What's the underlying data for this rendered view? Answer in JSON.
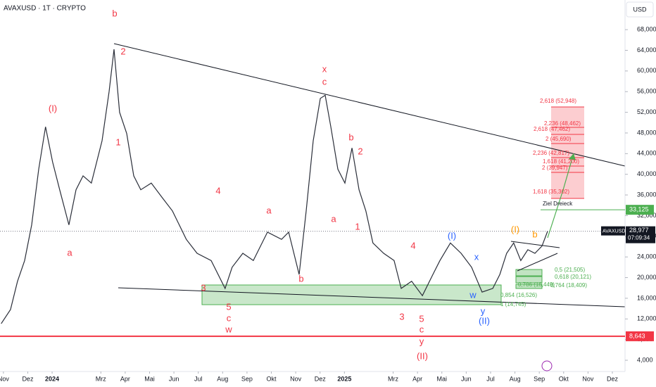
{
  "header": {
    "symbol": "AVAXUSD · 1T · CRYPTO",
    "currency": "USD"
  },
  "chart_data": {
    "type": "line",
    "color": "#2a2e39",
    "x": [
      -0.09,
      0.29,
      0.58,
      0.87,
      1.16,
      1.45,
      1.73,
      2.02,
      2.31,
      2.69,
      2.98,
      3.27,
      3.61,
      4.05,
      4.34,
      4.54,
      4.77,
      5.06,
      5.35,
      5.64,
      6.07,
      6.5,
      6.94,
      7.51,
      7.95,
      8.53,
      9.1,
      9.39,
      9.83,
      10.26,
      10.84,
      11.42,
      11.71,
      12.14,
      12.43,
      12.72,
      13.01,
      13.21,
      13.44,
      13.73,
      14.02,
      14.31,
      14.6,
      14.88,
      15.17,
      15.61,
      16.04,
      16.33,
      16.76,
      17.2,
      17.63,
      17.92,
      18.35,
      18.79,
      19.22,
      19.65,
      20.09,
      20.38,
      20.66,
      20.95,
      21.24,
      21.53,
      21.82,
      22.11,
      22.34
    ],
    "values": [
      11100,
      13800,
      19300,
      23300,
      30200,
      41000,
      49200,
      42400,
      37000,
      30200,
      37000,
      39700,
      38300,
      46500,
      56000,
      64200,
      52000,
      47900,
      39700,
      37000,
      38300,
      35600,
      32900,
      27400,
      24700,
      23300,
      17900,
      22000,
      24700,
      23300,
      28800,
      27400,
      28800,
      20600,
      32900,
      46500,
      54700,
      55300,
      49200,
      41000,
      38300,
      45100,
      37000,
      32900,
      26700,
      24700,
      23300,
      17900,
      19300,
      16500,
      20600,
      23300,
      26700,
      24700,
      22000,
      17200,
      17900,
      20600,
      24700,
      26700,
      23300,
      25400,
      24700,
      26100,
      28977
    ],
    "xlim": [
      -0.14,
      25.52
    ],
    "xticks": [
      {
        "value": 0,
        "label": "Nov"
      },
      {
        "value": 1,
        "label": "Dez"
      },
      {
        "value": 2,
        "label": "2024"
      },
      {
        "value": 4,
        "label": "Mrz"
      },
      {
        "value": 5,
        "label": "Apr"
      },
      {
        "value": 6,
        "label": "Mai"
      },
      {
        "value": 7,
        "label": "Jun"
      },
      {
        "value": 8,
        "label": "Jul"
      },
      {
        "value": 9,
        "label": "Aug"
      },
      {
        "value": 10,
        "label": "Sep"
      },
      {
        "value": 11,
        "label": "Okt"
      },
      {
        "value": 12,
        "label": "Nov"
      },
      {
        "value": 13,
        "label": "Dez"
      },
      {
        "value": 14,
        "label": "2025"
      },
      {
        "value": 16,
        "label": "Mrz"
      },
      {
        "value": 17,
        "label": "Apr"
      },
      {
        "value": 18,
        "label": "Mai"
      },
      {
        "value": 19,
        "label": "Jun"
      },
      {
        "value": 20,
        "label": "Jul"
      },
      {
        "value": 21,
        "label": "Aug"
      },
      {
        "value": 22,
        "label": "Sep"
      },
      {
        "value": 23,
        "label": "Okt"
      },
      {
        "value": 24,
        "label": "Nov"
      },
      {
        "value": 25,
        "label": "Dez"
      }
    ],
    "ylim": [
      1820,
      73740
    ],
    "yticks": [
      {
        "value": 4000,
        "label": "4,000"
      },
      {
        "value": 8000,
        "label": "8,000"
      },
      {
        "value": 12000,
        "label": "12,000"
      },
      {
        "value": 16000,
        "label": "16,000"
      },
      {
        "value": 20000,
        "label": "20,000"
      },
      {
        "value": 24000,
        "label": "24,000"
      },
      {
        "value": 28000,
        "label": "28,000"
      },
      {
        "value": 32000,
        "label": "32,000"
      },
      {
        "value": 36000,
        "label": "36,000"
      },
      {
        "value": 40000,
        "label": "40,000"
      },
      {
        "value": 44000,
        "label": "44,000"
      },
      {
        "value": 48000,
        "label": "48,000"
      },
      {
        "value": 52000,
        "label": "52,000"
      },
      {
        "value": 56000,
        "label": "56,000"
      },
      {
        "value": 60000,
        "label": "60,000"
      },
      {
        "value": 64000,
        "label": "64,000"
      },
      {
        "value": 68000,
        "label": "68,000"
      }
    ],
    "last_price": {
      "symbol": "AVAXUSD",
      "value": 28977,
      "label": "28,977",
      "countdown": "07:09:34"
    },
    "levels": [
      {
        "value": 33125,
        "label": "33,125",
        "color": "#4caf50"
      },
      {
        "value": 8643,
        "label": "8,643",
        "color": "#f23645"
      }
    ],
    "annotations": [
      {
        "text": "b",
        "color": "#f23645"
      },
      {
        "text": "2",
        "color": "#f23645"
      },
      {
        "text": "(I)",
        "color": "#f23645"
      },
      {
        "text": "1",
        "color": "#f23645"
      },
      {
        "text": "a",
        "color": "#f23645"
      },
      {
        "text": "4",
        "color": "#f23645"
      },
      {
        "text": "3",
        "color": "#f23645"
      },
      {
        "text": "5",
        "color": "#f23645"
      },
      {
        "text": "c",
        "color": "#f23645"
      },
      {
        "text": "w",
        "color": "#f23645"
      },
      {
        "text": "a",
        "color": "#f23645"
      },
      {
        "text": "b",
        "color": "#f23645"
      },
      {
        "text": "x",
        "color": "#f23645"
      },
      {
        "text": "c",
        "color": "#f23645"
      },
      {
        "text": "b",
        "color": "#f23645"
      },
      {
        "text": "2",
        "color": "#f23645"
      },
      {
        "text": "a",
        "color": "#f23645"
      },
      {
        "text": "1",
        "color": "#f23645"
      },
      {
        "text": "4",
        "color": "#f23645"
      },
      {
        "text": "3",
        "color": "#f23645"
      },
      {
        "text": "5",
        "color": "#f23645"
      },
      {
        "text": "c",
        "color": "#f23645"
      },
      {
        "text": "y",
        "color": "#f23645"
      },
      {
        "text": "(II)",
        "color": "#f23645"
      },
      {
        "text": "(I)",
        "color": "#2962ff"
      },
      {
        "text": "x",
        "color": "#2962ff"
      },
      {
        "text": "w",
        "color": "#2962ff"
      },
      {
        "text": "y",
        "color": "#2962ff"
      },
      {
        "text": "(II)",
        "color": "#2962ff"
      },
      {
        "text": "(I)",
        "color": "#ff9800"
      },
      {
        "text": "b",
        "color": "#ff9800"
      },
      {
        "text": "2,618 (52,948)",
        "color": "#f23645"
      },
      {
        "text": "2,236 (48,462)",
        "color": "#f23645"
      },
      {
        "text": "2,618 (47,462)",
        "color": "#f23645"
      },
      {
        "text": "2 (45,690)",
        "color": "#f23645"
      },
      {
        "text": "2,236 (42,817)",
        "color": "#f23645"
      },
      {
        "text": "1,618 (41,200)",
        "color": "#f23645"
      },
      {
        "text": "2 (39,947)",
        "color": "#f23645"
      },
      {
        "text": "1,618 (35,302)",
        "color": "#f23645"
      },
      {
        "text": "0,5 (21,505)",
        "color": "#4caf50"
      },
      {
        "text": "0,618 (20,121)",
        "color": "#4caf50"
      },
      {
        "text": "0,786 (18,449)",
        "color": "#4caf50"
      },
      {
        "text": "0,764 (18,409)",
        "color": "#4caf50"
      },
      {
        "text": "0,854 (16,526)",
        "color": "#4caf50"
      },
      {
        "text": "1 (14,745)",
        "color": "#4caf50"
      },
      {
        "text": "Ziel Dreieck",
        "color": "#131722"
      }
    ]
  }
}
